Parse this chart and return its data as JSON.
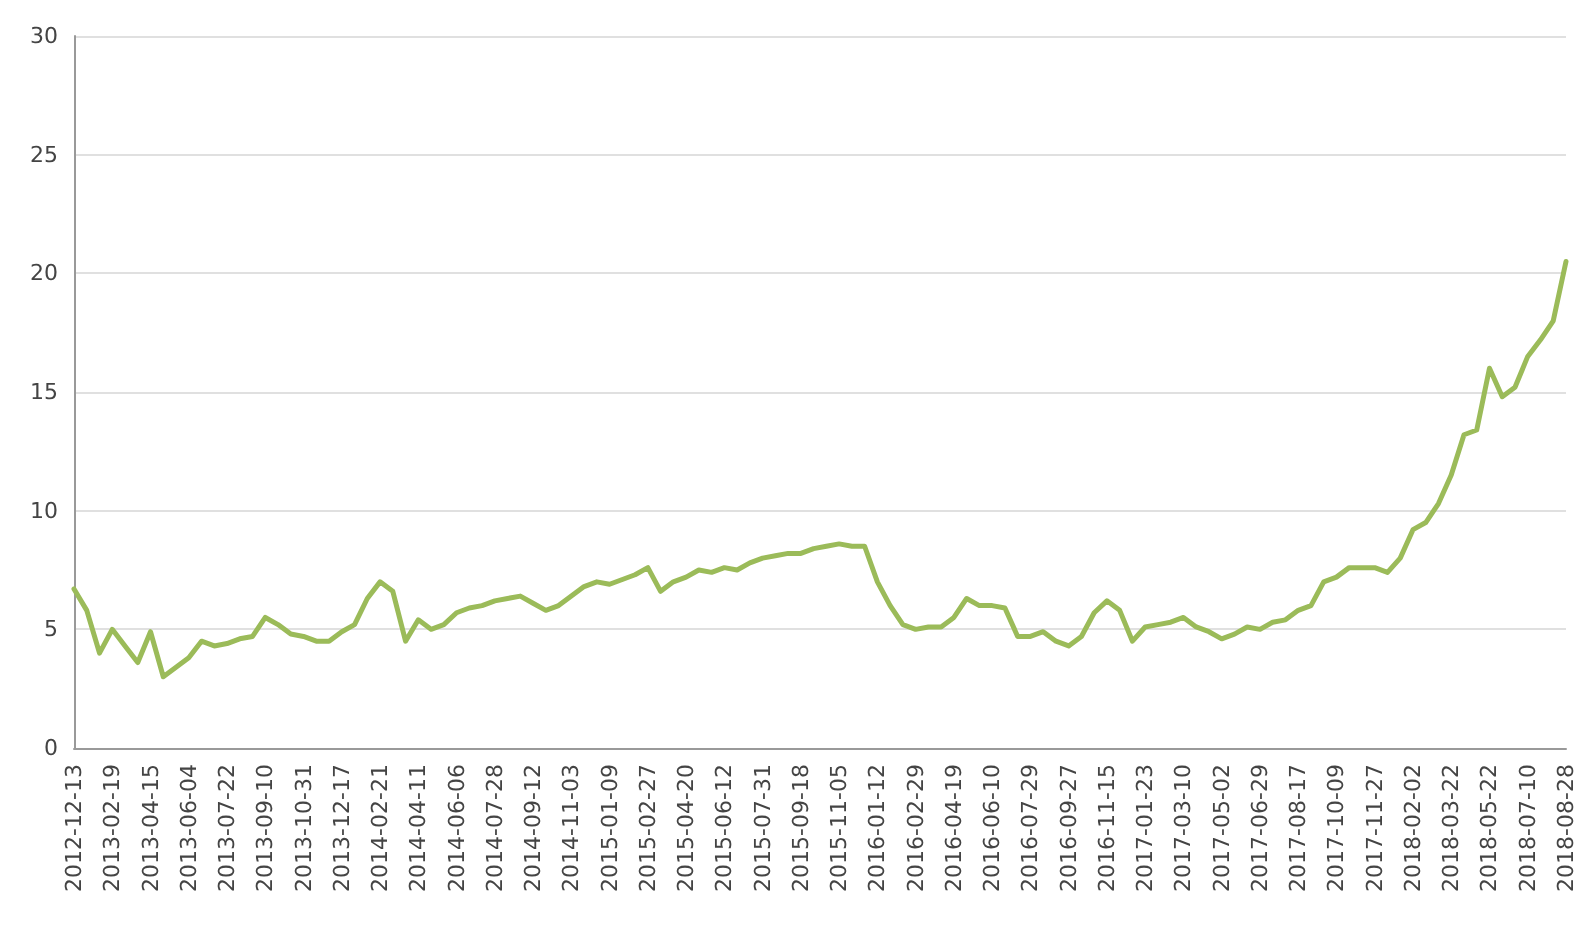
{
  "chart_data": {
    "type": "line",
    "categories": [
      "2012-12-13",
      null,
      null,
      "2013-02-19",
      null,
      null,
      "2013-04-15",
      null,
      null,
      "2013-06-04",
      null,
      null,
      "2013-07-22",
      null,
      null,
      "2013-09-10",
      null,
      null,
      "2013-10-31",
      null,
      null,
      "2013-12-17",
      null,
      null,
      "2014-02-21",
      null,
      null,
      "2014-04-11",
      null,
      null,
      "2014-06-06",
      null,
      null,
      "2014-07-28",
      null,
      null,
      "2014-09-12",
      null,
      null,
      "2014-11-03",
      null,
      null,
      "2015-01-09",
      null,
      null,
      "2015-02-27",
      null,
      null,
      "2015-04-20",
      null,
      null,
      "2015-06-12",
      null,
      null,
      "2015-07-31",
      null,
      null,
      "2015-09-18",
      null,
      null,
      "2015-11-05",
      null,
      null,
      "2016-01-12",
      null,
      null,
      "2016-02-29",
      null,
      null,
      "2016-04-19",
      null,
      null,
      "2016-06-10",
      null,
      null,
      "2016-07-29",
      null,
      null,
      "2016-09-27",
      null,
      null,
      "2016-11-15",
      null,
      null,
      "2017-01-23",
      null,
      null,
      "2017-03-10",
      null,
      null,
      "2017-05-02",
      null,
      null,
      "2017-06-29",
      null,
      null,
      "2017-08-17",
      null,
      null,
      "2017-10-09",
      null,
      null,
      "2017-11-27",
      null,
      null,
      "2018-02-02",
      null,
      null,
      "2018-03-22",
      null,
      null,
      "2018-05-22",
      null,
      null,
      "2018-07-10",
      null,
      null,
      "2018-08-28"
    ],
    "series": [
      {
        "color": "#9bbb59",
        "values": [
          6.7,
          5.8,
          4.0,
          5.0,
          4.3,
          3.6,
          4.9,
          3.0,
          3.4,
          3.8,
          4.5,
          4.3,
          4.4,
          4.6,
          4.7,
          5.5,
          5.2,
          4.8,
          4.7,
          4.5,
          4.5,
          4.9,
          5.2,
          6.3,
          7.0,
          6.6,
          4.5,
          5.4,
          5.0,
          5.2,
          5.7,
          5.9,
          6.0,
          6.2,
          6.3,
          6.4,
          6.1,
          5.8,
          6.0,
          6.4,
          6.8,
          7.0,
          6.9,
          7.1,
          7.3,
          7.6,
          6.6,
          7.0,
          7.2,
          7.5,
          7.4,
          7.6,
          7.5,
          7.8,
          8.0,
          8.1,
          8.2,
          8.2,
          8.4,
          8.5,
          8.6,
          8.5,
          8.5,
          7.0,
          6.0,
          5.2,
          5.0,
          5.1,
          5.1,
          5.5,
          6.3,
          6.0,
          6.0,
          5.9,
          4.7,
          4.7,
          4.9,
          4.5,
          4.3,
          4.7,
          5.7,
          6.2,
          5.8,
          4.5,
          5.1,
          5.2,
          5.3,
          5.5,
          5.1,
          4.9,
          4.6,
          4.8,
          5.1,
          5.0,
          5.3,
          5.4,
          5.8,
          6.0,
          7.0,
          7.2,
          7.6,
          7.6,
          7.6,
          7.4,
          8.0,
          9.2,
          9.5,
          10.3,
          11.5,
          13.2,
          13.4,
          16.0,
          14.8,
          15.2,
          16.5,
          17.2,
          18.0,
          20.5
        ]
      }
    ],
    "ylim": [
      0,
      30
    ],
    "yticks": [
      0,
      5,
      10,
      15,
      20,
      25,
      30
    ],
    "grid": "y",
    "marker": "none",
    "line_style": "solid"
  }
}
